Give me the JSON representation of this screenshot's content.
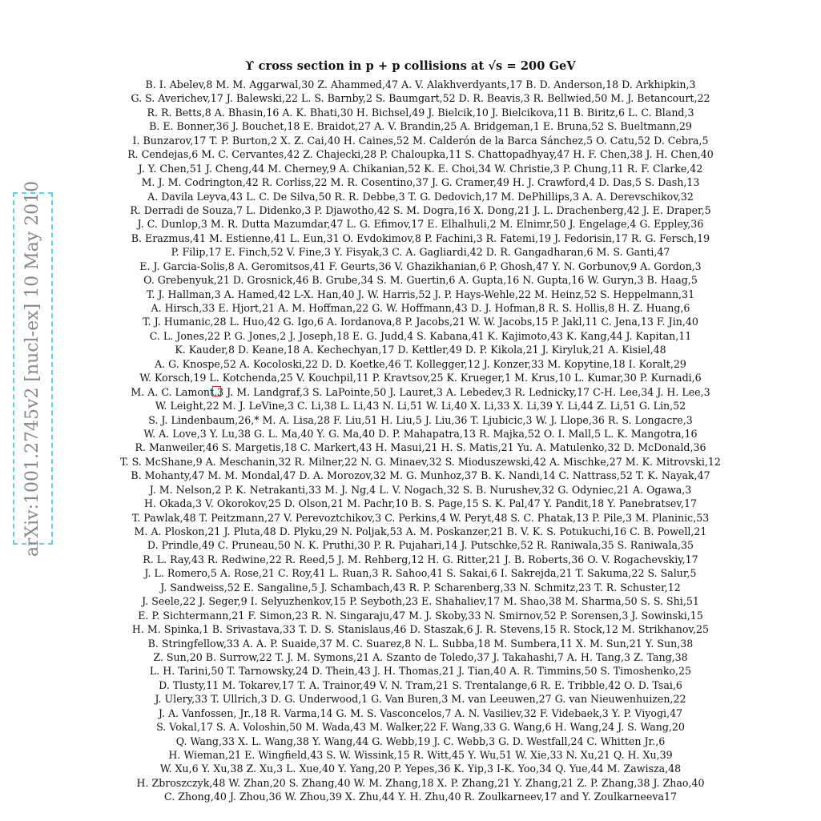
{
  "title": "ϒ cross section in p + p collisions at √s = 200 GeV",
  "arxiv_id": "arXiv:1001.2745v2 [nucl-ex] 10 May 2010",
  "author_lines": [
    "B. I. Abelev,8 M. M. Aggarwal,30 Z. Ahammed,47 A. V. Alakhverdyants,17 B. D. Anderson,18 D. Arkhipkin,3",
    "G. S. Averichev,17 J. Balewski,22 L. S. Barnby,2 S. Baumgart,52 D. R. Beavis,3 R. Bellwied,50 M. J. Betancourt,22",
    "R. R. Betts,8 A. Bhasin,16 A. K. Bhati,30 H. Bichsel,49 J. Bielcik,10 J. Bielcikova,11 B. Biritz,6 L. C. Bland,3",
    "B. E. Bonner,36 J. Bouchet,18 E. Braidot,27 A. V. Brandin,25 A. Bridgeman,1 E. Bruna,52 S. Bueltmann,29",
    "I. Bunzarov,17 T. P. Burton,2 X. Z. Cai,40 H. Caines,52 M. Calderón de la Barca Sánchez,5 O. Catu,52 D. Cebra,5",
    "R. Cendejas,6 M. C. Cervantes,42 Z. Chajecki,28 P. Chaloupka,11 S. Chattopadhyay,47 H. F. Chen,38 J. H. Chen,40",
    "J. Y. Chen,51 J. Cheng,44 M. Cherney,9 A. Chikanian,52 K. E. Choi,34 W. Christie,3 P. Chung,11 R. F. Clarke,42",
    "M. J. M. Codrington,42 R. Corliss,22 M. R. Cosentino,37 J. G. Cramer,49 H. J. Crawford,4 D. Das,5 S. Dash,13",
    "A. Davila Leyva,43 L. C. De Silva,50 R. R. Debbe,3 T. G. Dedovich,17 M. DePhillips,3 A. A. Derevschikov,32",
    "R. Derradi de Souza,7 L. Didenko,3 P. Djawotho,42 S. M. Dogra,16 X. Dong,21 J. L. Drachenberg,42 J. E. Draper,5",
    "J. C. Dunlop,3 M. R. Dutta Mazumdar,47 L. G. Efimov,17 E. Elhalhuli,2 M. Elnimr,50 J. Engelage,4 G. Eppley,36",
    "B. Erazmus,41 M. Estienne,41 L. Eun,31 O. Evdokimov,8 P. Fachini,3 R. Fatemi,19 J. Fedorisin,17 R. G. Fersch,19",
    "P. Filip,17 E. Finch,52 V. Fine,3 Y. Fisyak,3 C. A. Gagliardi,42 D. R. Gangadharan,6 M. S. Ganti,47",
    "E. J. Garcia-Solis,8 A. Geromitsos,41 F. Geurts,36 V. Ghazikhanian,6 P. Ghosh,47 Y. N. Gorbunov,9 A. Gordon,3",
    "O. Grebenyuk,21 D. Grosnick,46 B. Grube,34 S. M. Guertin,6 A. Gupta,16 N. Gupta,16 W. Guryn,3 B. Haag,5",
    "T. J. Hallman,3 A. Hamed,42 L-X. Han,40 J. W. Harris,52 J. P. Hays-Wehle,22 M. Heinz,52 S. Heppelmann,31",
    "A. Hirsch,33 E. Hjort,21 A. M. Hoffman,22 G. W. Hoffmann,43 D. J. Hofman,8 R. S. Hollis,8 H. Z. Huang,6",
    "T. J. Humanic,28 L. Huo,42 G. Igo,6 A. Iordanova,8 P. Jacobs,21 W. W. Jacobs,15 P. Jakl,11 C. Jena,13 F. Jin,40",
    "C. L. Jones,22 P. G. Jones,2 J. Joseph,18 E. G. Judd,4 S. Kabana,41 K. Kajimoto,43 K. Kang,44 J. Kapitan,11",
    "K. Kauder,8 D. Keane,18 A. Kechechyan,17 D. Kettler,49 D. P. Kikola,21 J. Kiryluk,21 A. Kisiel,48",
    "A. G. Knospe,52 A. Kocoloski,22 D. D. Koetke,46 T. Kollegger,12 J. Konzer,33 M. Kopytine,18 I. Koralt,29",
    "W. Korsch,19 L. Kotchenda,25 V. Kouchpil,11 P. Kravtsov,25 K. Krueger,1 M. Krus,10 L. Kumar,30 P. Kurnadi,6",
    "M. A. C. Lamont,3 J. M. Landgraf,3 S. LaPointe,50 J. Lauret,3 A. Lebedev,3 R. Lednicky,17 C-H. Lee,34 J. H. Lee,3",
    "W. Leight,22 M. J. LeVine,3 C. Li,38 L. Li,43 N. Li,51 W. Li,40 X. Li,33 X. Li,39 Y. Li,44 Z. Li,51 G. Lin,52",
    "S. J. Lindenbaum,26,* M. A. Lisa,28 F. Liu,51 H. Liu,5 J. Liu,36 T. Ljubicic,3 W. J. Llope,36 R. S. Longacre,3",
    "W. A. Love,3 Y. Lu,38 G. L. Ma,40 Y. G. Ma,40 D. P. Mahapatra,13 R. Majka,52 O. I. Mall,5 L. K. Mangotra,16",
    "R. Manweiler,46 S. Margetis,18 C. Markert,43 H. Masui,21 H. S. Matis,21 Yu. A. Matulenko,32 D. McDonald,36",
    "T. S. McShane,9 A. Meschanin,32 R. Milner,22 N. G. Minaev,32 S. Mioduszewski,42 A. Mischke,27 M. K. Mitrovski,12",
    "B. Mohanty,47 M. M. Mondal,47 D. A. Morozov,32 M. G. Munhoz,37 B. K. Nandi,14 C. Nattrass,52 T. K. Nayak,47",
    "J. M. Nelson,2 P. K. Netrakanti,33 M. J. Ng,4 L. V. Nogach,32 S. B. Nurushev,32 G. Odyniec,21 A. Ogawa,3",
    "H. Okada,3 V. Okorokov,25 D. Olson,21 M. Pachr,10 B. S. Page,15 S. K. Pal,47 Y. Pandit,18 Y. Panebratsev,17",
    "T. Pawlak,48 T. Peitzmann,27 V. Perevoztchikov,3 C. Perkins,4 W. Peryt,48 S. C. Phatak,13 P. Pile,3 M. Planinic,53",
    "M. A. Ploskon,21 J. Pluta,48 D. Plyku,29 N. Poljak,53 A. M. Poskanzer,21 B. V. K. S. Potukuchi,16 C. B. Powell,21",
    "D. Prindle,49 C. Pruneau,50 N. K. Pruthi,30 P. R. Pujahari,14 J. Putschke,52 R. Raniwala,35 S. Raniwala,35",
    "R. L. Ray,43 R. Redwine,22 R. Reed,5 J. M. Rehberg,12 H. G. Ritter,21 J. B. Roberts,36 O. V. Rogachevskiy,17",
    "J. L. Romero,5 A. Rose,21 C. Roy,41 L. Ruan,3 R. Sahoo,41 S. Sakai,6 I. Sakrejda,21 T. Sakuma,22 S. Salur,5",
    "J. Sandweiss,52 E. Sangaline,5 J. Schambach,43 R. P. Scharenberg,33 N. Schmitz,23 T. R. Schuster,12",
    "J. Seele,22 J. Seger,9 I. Selyuzhenkov,15 P. Seyboth,23 E. Shahaliev,17 M. Shao,38 M. Sharma,50 S. S. Shi,51",
    "E. P. Sichtermann,21 F. Simon,23 R. N. Singaraju,47 M. J. Skoby,33 N. Smirnov,52 P. Sorensen,3 J. Sowinski,15",
    "H. M. Spinka,1 B. Srivastava,33 T. D. S. Stanislaus,46 D. Staszak,6 J. R. Stevens,15 R. Stock,12 M. Strikhanov,25",
    "B. Stringfellow,33 A. A. P. Suaide,37 M. C. Suarez,8 N. L. Subba,18 M. Sumbera,11 X. M. Sun,21 Y. Sun,38",
    "Z. Sun,20 B. Surrow,22 T. J. M. Symons,21 A. Szanto de Toledo,37 J. Takahashi,7 A. H. Tang,3 Z. Tang,38",
    "L. H. Tarini,50 T. Tarnowsky,24 D. Thein,43 J. H. Thomas,21 J. Tian,40 A. R. Timmins,50 S. Timoshenko,25",
    "D. Tlusty,11 M. Tokarev,17 T. A. Trainor,49 V. N. Tram,21 S. Trentalange,6 R. E. Tribble,42 O. D. Tsai,6",
    "J. Ulery,33 T. Ullrich,3 D. G. Underwood,1 G. Van Buren,3 M. van Leeuwen,27 G. van Nieuwenhuizen,22",
    "J. A. Vanfossen, Jr.,18 R. Varma,14 G. M. S. Vasconcelos,7 A. N. Vasiliev,32 F. Videbaek,3 Y. P. Viyogi,47",
    "S. Vokal,17 S. A. Voloshin,50 M. Wada,43 M. Walker,22 F. Wang,33 G. Wang,6 H. Wang,24 J. S. Wang,20",
    "Q. Wang,33 X. L. Wang,38 Y. Wang,44 G. Webb,19 J. C. Webb,3 G. D. Westfall,24 C. Whitten Jr.,6",
    "H. Wieman,21 E. Wingfield,43 S. W. Wissink,15 R. Witt,45 Y. Wu,51 W. Xie,33 N. Xu,21 Q. H. Xu,39",
    "W. Xu,6 Y. Xu,38 Z. Xu,3 L. Xue,40 Y. Yang,20 P. Yepes,36 K. Yip,3 I-K. Yoo,34 Q. Yue,44 M. Zawisza,48",
    "H. Zbroszczyk,48 W. Zhan,20 S. Zhang,40 W. M. Zhang,18 X. P. Zhang,21 Y. Zhang,21 Z. P. Zhang,38 J. Zhao,40",
    "C. Zhong,40 J. Zhou,36 W. Zhou,39 X. Zhu,44 Y. H. Zhu,40 R. Zoulkarneev,17 and Y. Zoulkarneeva17"
  ],
  "colors": {
    "stamp_border": "#5fd3e2",
    "stamp_text": "#888888",
    "marker": "#e02020"
  }
}
